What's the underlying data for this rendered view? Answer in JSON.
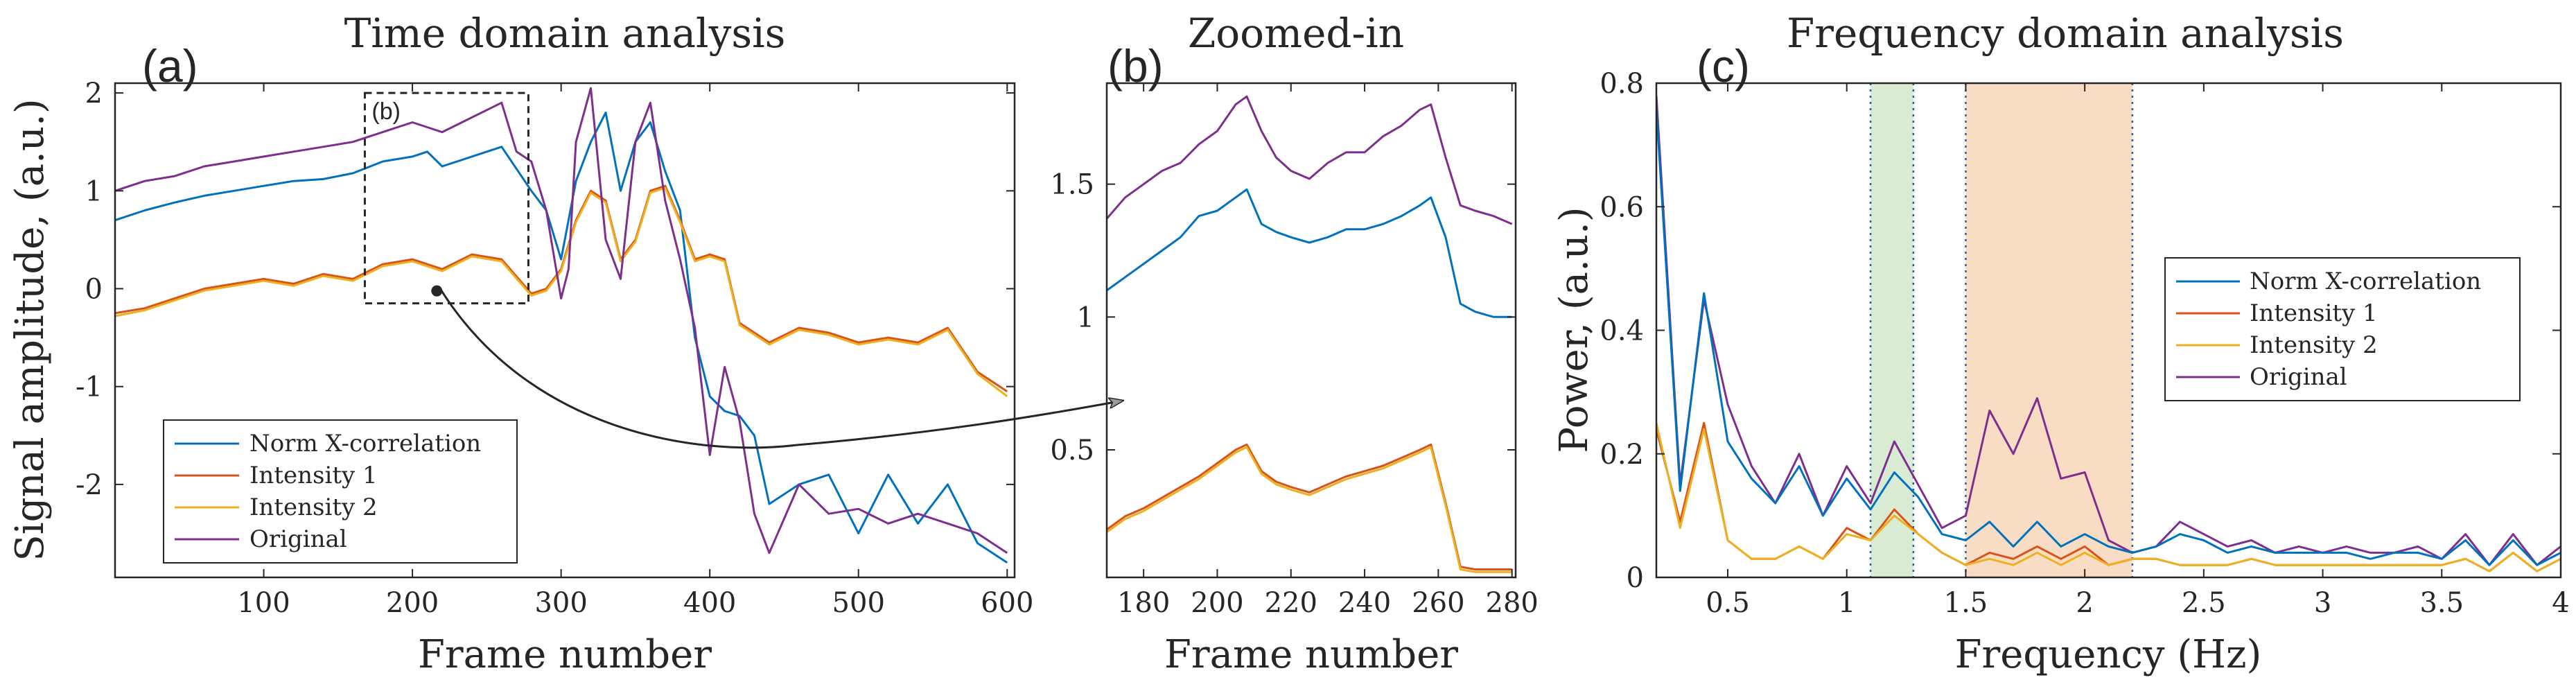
{
  "colors": {
    "norm": "#0072BD",
    "int1": "#D95319",
    "int2": "#EDB120",
    "orig": "#7E2F8E",
    "green_band": "#d9ebd3",
    "orange_band": "#f8dcc4",
    "band_edge": "#1f5fa8",
    "axis": "#262626"
  },
  "chart_data": [
    {
      "id": "a",
      "type": "line",
      "panel_label": "(a)",
      "title": "Time domain analysis",
      "xlabel": "Frame number",
      "ylabel": "Signal amplitude, (a.u.)",
      "xlim": [
        0,
        605
      ],
      "ylim": [
        -2.95,
        2.1
      ],
      "xticks": [
        100,
        200,
        300,
        400,
        500,
        600
      ],
      "yticks": [
        -2,
        -1,
        0,
        1,
        2
      ],
      "ytick_labels": [
        "-2",
        "-1",
        "0",
        "1",
        "2"
      ],
      "legend": [
        "Norm X-correlation",
        "Intensity 1",
        "Intensity 2",
        "Original"
      ],
      "zoom_box": {
        "label": "(b)",
        "x": [
          168,
          278
        ],
        "y": [
          -0.15,
          2.0
        ]
      },
      "annotation": "arrow from zoom box to panel (b)",
      "series": [
        {
          "name": "Norm X-correlation",
          "color_key": "norm",
          "x": [
            0,
            20,
            40,
            60,
            80,
            100,
            120,
            140,
            160,
            180,
            200,
            210,
            220,
            240,
            260,
            280,
            290,
            300,
            310,
            320,
            330,
            340,
            350,
            360,
            370,
            380,
            390,
            400,
            410,
            420,
            430,
            440,
            460,
            480,
            500,
            520,
            540,
            560,
            580,
            600
          ],
          "y": [
            0.7,
            0.8,
            0.88,
            0.95,
            1.0,
            1.05,
            1.1,
            1.12,
            1.18,
            1.3,
            1.35,
            1.4,
            1.25,
            1.35,
            1.45,
            1.0,
            0.8,
            0.3,
            1.1,
            1.5,
            1.8,
            1.0,
            1.5,
            1.7,
            1.2,
            0.8,
            -0.5,
            -1.1,
            -1.25,
            -1.3,
            -1.5,
            -2.2,
            -2.0,
            -1.9,
            -2.5,
            -1.9,
            -2.4,
            -2.0,
            -2.6,
            -2.8
          ]
        },
        {
          "name": "Intensity 1",
          "color_key": "int1",
          "x": [
            0,
            20,
            40,
            60,
            80,
            100,
            120,
            140,
            160,
            180,
            200,
            220,
            240,
            260,
            280,
            290,
            300,
            310,
            320,
            330,
            340,
            350,
            360,
            370,
            380,
            390,
            400,
            410,
            420,
            440,
            460,
            480,
            500,
            520,
            540,
            560,
            580,
            600
          ],
          "y": [
            -0.25,
            -0.2,
            -0.1,
            0.0,
            0.05,
            0.1,
            0.05,
            0.15,
            0.1,
            0.25,
            0.3,
            0.2,
            0.35,
            0.3,
            -0.05,
            0.0,
            0.2,
            0.7,
            1.0,
            0.9,
            0.3,
            0.5,
            1.0,
            1.05,
            0.7,
            0.3,
            0.35,
            0.3,
            -0.35,
            -0.55,
            -0.4,
            -0.45,
            -0.55,
            -0.5,
            -0.55,
            -0.4,
            -0.85,
            -1.05
          ]
        },
        {
          "name": "Intensity 2",
          "color_key": "int2",
          "x": [
            0,
            20,
            40,
            60,
            80,
            100,
            120,
            140,
            160,
            180,
            200,
            220,
            240,
            260,
            280,
            290,
            300,
            310,
            320,
            330,
            340,
            350,
            360,
            370,
            380,
            390,
            400,
            410,
            420,
            440,
            460,
            480,
            500,
            520,
            540,
            560,
            580,
            600
          ],
          "y": [
            -0.28,
            -0.22,
            -0.12,
            -0.02,
            0.03,
            0.08,
            0.03,
            0.13,
            0.08,
            0.23,
            0.28,
            0.18,
            0.33,
            0.28,
            -0.07,
            -0.02,
            0.18,
            0.68,
            0.98,
            0.88,
            0.28,
            0.48,
            0.98,
            1.03,
            0.68,
            0.28,
            0.33,
            0.28,
            -0.37,
            -0.57,
            -0.42,
            -0.47,
            -0.57,
            -0.52,
            -0.57,
            -0.42,
            -0.87,
            -1.1
          ]
        },
        {
          "name": "Original",
          "color_key": "orig",
          "x": [
            0,
            20,
            40,
            60,
            80,
            100,
            120,
            140,
            160,
            180,
            200,
            220,
            240,
            260,
            270,
            280,
            290,
            300,
            305,
            310,
            320,
            330,
            340,
            350,
            360,
            370,
            380,
            390,
            400,
            410,
            420,
            430,
            440,
            460,
            480,
            500,
            520,
            540,
            560,
            580,
            600
          ],
          "y": [
            1.0,
            1.1,
            1.15,
            1.25,
            1.3,
            1.35,
            1.4,
            1.45,
            1.5,
            1.6,
            1.7,
            1.6,
            1.75,
            1.9,
            1.4,
            1.3,
            0.8,
            -0.1,
            0.2,
            1.5,
            2.05,
            0.5,
            0.1,
            1.5,
            1.9,
            0.9,
            0.3,
            -0.4,
            -1.7,
            -0.8,
            -1.35,
            -2.3,
            -2.7,
            -2.0,
            -2.3,
            -2.25,
            -2.4,
            -2.3,
            -2.4,
            -2.5,
            -2.7
          ]
        }
      ]
    },
    {
      "id": "b",
      "type": "line",
      "panel_label": "(b)",
      "title": "Zoomed-in",
      "xlabel": "Frame number",
      "ylabel": "",
      "xlim": [
        170,
        281
      ],
      "ylim": [
        0.02,
        1.88
      ],
      "xticks": [
        180,
        200,
        220,
        240,
        260,
        280
      ],
      "yticks": [
        0.5,
        1,
        1.5
      ],
      "ytick_labels": [
        "0.5",
        "1",
        "1.5"
      ],
      "series": [
        {
          "name": "Original",
          "color_key": "orig",
          "x": [
            170,
            175,
            180,
            185,
            190,
            195,
            200,
            205,
            208,
            212,
            216,
            220,
            225,
            230,
            235,
            240,
            245,
            250,
            255,
            258,
            262,
            266,
            270,
            275,
            280
          ],
          "y": [
            1.37,
            1.45,
            1.5,
            1.55,
            1.58,
            1.65,
            1.7,
            1.8,
            1.83,
            1.7,
            1.6,
            1.55,
            1.52,
            1.58,
            1.62,
            1.62,
            1.68,
            1.72,
            1.78,
            1.8,
            1.6,
            1.42,
            1.4,
            1.38,
            1.35
          ]
        },
        {
          "name": "Norm X-correlation",
          "color_key": "norm",
          "x": [
            170,
            175,
            180,
            185,
            190,
            195,
            200,
            205,
            208,
            212,
            216,
            220,
            225,
            230,
            235,
            240,
            245,
            250,
            255,
            258,
            262,
            266,
            270,
            275,
            280
          ],
          "y": [
            1.1,
            1.15,
            1.2,
            1.25,
            1.3,
            1.38,
            1.4,
            1.45,
            1.48,
            1.35,
            1.32,
            1.3,
            1.28,
            1.3,
            1.33,
            1.33,
            1.35,
            1.38,
            1.42,
            1.45,
            1.3,
            1.05,
            1.02,
            1.0,
            1.0
          ]
        },
        {
          "name": "Intensity 1",
          "color_key": "int1",
          "x": [
            170,
            175,
            180,
            185,
            190,
            195,
            200,
            205,
            208,
            212,
            216,
            220,
            225,
            230,
            235,
            240,
            245,
            250,
            255,
            258,
            262,
            266,
            270,
            275,
            280
          ],
          "y": [
            0.2,
            0.25,
            0.28,
            0.32,
            0.36,
            0.4,
            0.45,
            0.5,
            0.52,
            0.42,
            0.38,
            0.36,
            0.34,
            0.37,
            0.4,
            0.42,
            0.44,
            0.47,
            0.5,
            0.52,
            0.3,
            0.06,
            0.05,
            0.05,
            0.05
          ]
        },
        {
          "name": "Intensity 2",
          "color_key": "int2",
          "x": [
            170,
            175,
            180,
            185,
            190,
            195,
            200,
            205,
            208,
            212,
            216,
            220,
            225,
            230,
            235,
            240,
            245,
            250,
            255,
            258,
            262,
            266,
            270,
            275,
            280
          ],
          "y": [
            0.19,
            0.24,
            0.27,
            0.31,
            0.35,
            0.39,
            0.44,
            0.49,
            0.51,
            0.41,
            0.37,
            0.35,
            0.33,
            0.36,
            0.39,
            0.41,
            0.43,
            0.46,
            0.49,
            0.51,
            0.29,
            0.05,
            0.04,
            0.04,
            0.04
          ]
        }
      ]
    },
    {
      "id": "c",
      "type": "line",
      "panel_label": "(c)",
      "title": "Frequency domain analysis",
      "xlabel": "Frequency (Hz)",
      "ylabel": "Power, (a.u.)",
      "xlim": [
        0.2,
        4.0
      ],
      "ylim": [
        0,
        0.8
      ],
      "xticks": [
        0.5,
        1,
        1.5,
        2,
        2.5,
        3,
        3.5,
        4
      ],
      "xtick_labels": [
        "0.5",
        "1",
        "1.5",
        "2",
        "2.5",
        "3",
        "3.5",
        "4"
      ],
      "yticks": [
        0,
        0.2,
        0.4,
        0.6,
        0.8
      ],
      "ytick_labels": [
        "0",
        "0.2",
        "0.4",
        "0.6",
        "0.8"
      ],
      "bands": [
        {
          "name": "green band",
          "x": [
            1.1,
            1.28
          ],
          "color_key": "green_band"
        },
        {
          "name": "orange band",
          "x": [
            1.5,
            2.2
          ],
          "color_key": "orange_band"
        }
      ],
      "legend": [
        "Norm X-correlation",
        "Intensity 1",
        "Intensity 2",
        "Original"
      ],
      "series": [
        {
          "name": "Original",
          "color_key": "orig",
          "x": [
            0.2,
            0.3,
            0.4,
            0.5,
            0.6,
            0.7,
            0.8,
            0.9,
            1.0,
            1.1,
            1.2,
            1.3,
            1.4,
            1.5,
            1.6,
            1.7,
            1.8,
            1.9,
            2.0,
            2.1,
            2.2,
            2.3,
            2.4,
            2.5,
            2.6,
            2.7,
            2.8,
            2.9,
            3.0,
            3.1,
            3.2,
            3.3,
            3.4,
            3.5,
            3.6,
            3.7,
            3.8,
            3.9,
            4.0
          ],
          "y": [
            0.78,
            0.15,
            0.45,
            0.28,
            0.18,
            0.12,
            0.2,
            0.1,
            0.18,
            0.12,
            0.22,
            0.15,
            0.08,
            0.1,
            0.27,
            0.2,
            0.29,
            0.16,
            0.17,
            0.06,
            0.04,
            0.05,
            0.09,
            0.07,
            0.05,
            0.06,
            0.04,
            0.05,
            0.04,
            0.05,
            0.04,
            0.04,
            0.05,
            0.03,
            0.07,
            0.02,
            0.07,
            0.02,
            0.05
          ]
        },
        {
          "name": "Norm X-correlation",
          "color_key": "norm",
          "x": [
            0.2,
            0.3,
            0.4,
            0.5,
            0.6,
            0.7,
            0.8,
            0.9,
            1.0,
            1.1,
            1.2,
            1.3,
            1.4,
            1.5,
            1.6,
            1.7,
            1.8,
            1.9,
            2.0,
            2.1,
            2.2,
            2.3,
            2.4,
            2.5,
            2.6,
            2.7,
            2.8,
            2.9,
            3.0,
            3.1,
            3.2,
            3.3,
            3.4,
            3.5,
            3.6,
            3.7,
            3.8,
            3.9,
            4.0
          ],
          "y": [
            0.76,
            0.14,
            0.46,
            0.22,
            0.16,
            0.12,
            0.18,
            0.1,
            0.16,
            0.11,
            0.17,
            0.13,
            0.07,
            0.06,
            0.09,
            0.05,
            0.09,
            0.05,
            0.07,
            0.05,
            0.04,
            0.05,
            0.07,
            0.06,
            0.04,
            0.05,
            0.04,
            0.04,
            0.04,
            0.04,
            0.03,
            0.04,
            0.04,
            0.03,
            0.06,
            0.02,
            0.06,
            0.02,
            0.04
          ]
        },
        {
          "name": "Intensity 1",
          "color_key": "int1",
          "x": [
            0.2,
            0.3,
            0.4,
            0.5,
            0.6,
            0.7,
            0.8,
            0.9,
            1.0,
            1.1,
            1.2,
            1.3,
            1.4,
            1.5,
            1.6,
            1.7,
            1.8,
            1.9,
            2.0,
            2.1,
            2.2,
            2.3,
            2.4,
            2.5,
            2.6,
            2.7,
            2.8,
            2.9,
            3.0,
            3.1,
            3.2,
            3.3,
            3.4,
            3.5,
            3.6,
            3.7,
            3.8,
            3.9,
            4.0
          ],
          "y": [
            0.24,
            0.09,
            0.25,
            0.06,
            0.03,
            0.03,
            0.05,
            0.03,
            0.08,
            0.06,
            0.11,
            0.07,
            0.04,
            0.02,
            0.04,
            0.03,
            0.05,
            0.03,
            0.05,
            0.02,
            0.03,
            0.03,
            0.02,
            0.02,
            0.02,
            0.03,
            0.02,
            0.02,
            0.02,
            0.02,
            0.02,
            0.02,
            0.02,
            0.02,
            0.03,
            0.01,
            0.04,
            0.01,
            0.03
          ]
        },
        {
          "name": "Intensity 2",
          "color_key": "int2",
          "x": [
            0.2,
            0.3,
            0.4,
            0.5,
            0.6,
            0.7,
            0.8,
            0.9,
            1.0,
            1.1,
            1.2,
            1.3,
            1.4,
            1.5,
            1.6,
            1.7,
            1.8,
            1.9,
            2.0,
            2.1,
            2.2,
            2.3,
            2.4,
            2.5,
            2.6,
            2.7,
            2.8,
            2.9,
            3.0,
            3.1,
            3.2,
            3.3,
            3.4,
            3.5,
            3.6,
            3.7,
            3.8,
            3.9,
            4.0
          ],
          "y": [
            0.25,
            0.08,
            0.24,
            0.06,
            0.03,
            0.03,
            0.05,
            0.03,
            0.07,
            0.06,
            0.1,
            0.07,
            0.04,
            0.02,
            0.03,
            0.02,
            0.04,
            0.02,
            0.04,
            0.02,
            0.03,
            0.03,
            0.02,
            0.02,
            0.02,
            0.03,
            0.02,
            0.02,
            0.02,
            0.02,
            0.02,
            0.02,
            0.02,
            0.02,
            0.03,
            0.01,
            0.04,
            0.01,
            0.03
          ]
        }
      ]
    }
  ]
}
